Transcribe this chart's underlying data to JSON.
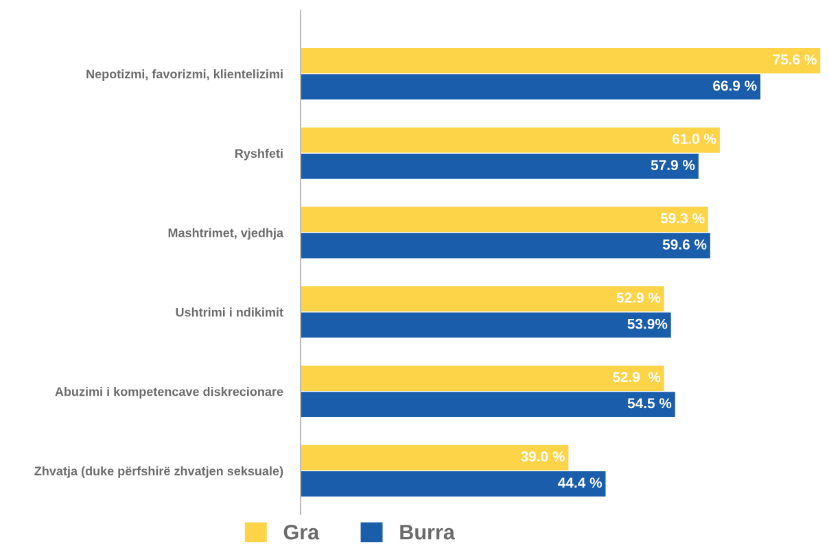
{
  "chart_data": {
    "type": "bar",
    "orientation": "horizontal",
    "categories": [
      "Nepotizmi, favorizmi, klientelizimi",
      "Ryshfeti",
      "Mashtrimet, vjedhja",
      "Ushtrimi i ndikimit",
      "Abuzimi i kompetencave diskrecionare",
      "Zhvatja (duke përfshirë zhvatjen seksuale)"
    ],
    "series": [
      {
        "name": "Gra",
        "color": "#fdd447",
        "values": [
          75.6,
          61.0,
          59.3,
          52.9,
          52.9,
          39.0
        ],
        "value_labels": [
          "75.6 %",
          "61.0 %",
          "59.3 %",
          "52.9 %",
          "52.9  %",
          "39.0 %"
        ]
      },
      {
        "name": "Burra",
        "color": "#1a5dab",
        "values": [
          66.9,
          57.9,
          59.6,
          53.9,
          54.5,
          44.4
        ],
        "value_labels": [
          "66.9 %",
          "57.9 %",
          "59.6 %",
          "53.9%",
          "54.5 %",
          "44.4 %"
        ]
      }
    ],
    "xlim": [
      0,
      76
    ],
    "tick_labels": "y",
    "legend": "bottom",
    "grid": false
  }
}
